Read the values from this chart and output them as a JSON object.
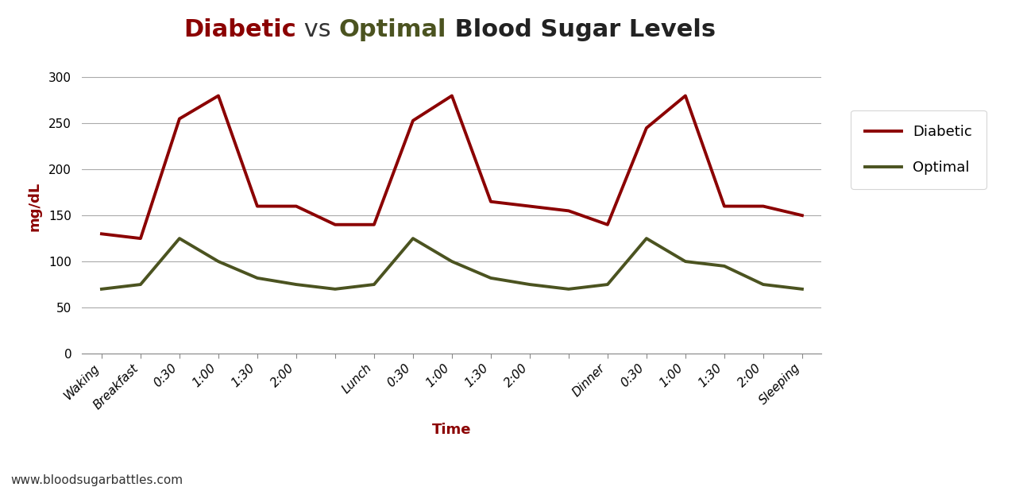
{
  "xlabel": "Time",
  "ylabel": "mg/dL",
  "watermark": "www.bloodsugarbattles.com",
  "x_labels": [
    "Waking",
    "Breakfast",
    "0:30",
    "1:00",
    "1:30",
    "2:00",
    "",
    "Lunch",
    "0:30",
    "1:00",
    "1:30",
    "2:00",
    "",
    "Dinner",
    "0:30",
    "1:00",
    "1:30",
    "2:00",
    "Sleeping"
  ],
  "diabetic_values": [
    130,
    125,
    255,
    280,
    160,
    160,
    140,
    140,
    253,
    280,
    165,
    160,
    155,
    140,
    245,
    280,
    160,
    160,
    150
  ],
  "optimal_values": [
    70,
    75,
    125,
    100,
    82,
    75,
    70,
    75,
    125,
    100,
    82,
    75,
    70,
    75,
    125,
    100,
    95,
    75,
    70
  ],
  "diabetic_color": "#8B0000",
  "optimal_color": "#4B5320",
  "ylim": [
    0,
    320
  ],
  "yticks": [
    0,
    50,
    100,
    150,
    200,
    250,
    300
  ],
  "background_color": "#ffffff",
  "grid_color": "#aaaaaa",
  "legend_diabetic": "Diabetic",
  "legend_optimal": "Optimal",
  "title_fontsize": 22,
  "axis_label_fontsize": 13,
  "tick_fontsize": 11,
  "watermark_fontsize": 11,
  "title_items": [
    [
      "Diabetic",
      "#8B0000",
      true
    ],
    [
      " vs ",
      "#333333",
      false
    ],
    [
      "Optimal",
      "#4B5320",
      true
    ],
    [
      " Blood Sugar Levels",
      "#222222",
      true
    ]
  ]
}
